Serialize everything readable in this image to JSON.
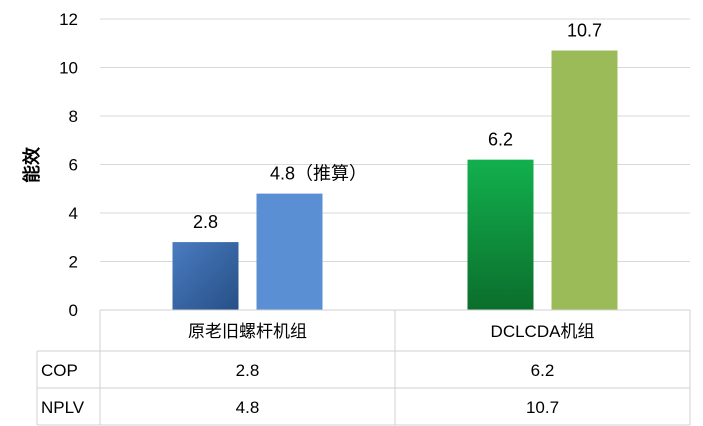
{
  "chart_data": {
    "type": "bar",
    "title": "",
    "xlabel": "",
    "ylabel": "能效",
    "ylim": [
      0,
      12
    ],
    "yticks": [
      0,
      2,
      4,
      6,
      8,
      10,
      12
    ],
    "grid": true,
    "categories": [
      "原老旧螺杆机组",
      "DCLCDA机组"
    ],
    "series": [
      {
        "name": "COP",
        "values": [
          2.8,
          6.2
        ],
        "data_labels": [
          "2.8",
          "6.2"
        ],
        "colors": [
          "#3d6fb0",
          "#1f9a44"
        ]
      },
      {
        "name": "NPLV",
        "values": [
          4.8,
          10.7
        ],
        "data_labels": [
          "4.8（推算）",
          "10.7"
        ],
        "colors": [
          "#5b8fd3",
          "#9bbb59"
        ]
      }
    ],
    "data_table": {
      "rows": [
        {
          "label": "COP",
          "values": [
            "2.8",
            "6.2"
          ]
        },
        {
          "label": "NPLV",
          "values": [
            "4.8",
            "10.7"
          ]
        }
      ]
    }
  }
}
